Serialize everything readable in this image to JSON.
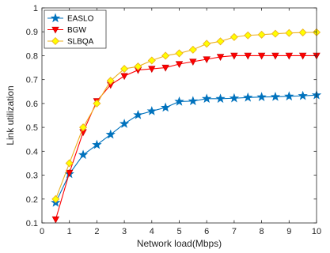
{
  "chart_data": {
    "type": "line",
    "xlabel": "Network load(Mbps)",
    "ylabel": "Link utilization",
    "xlim": [
      0,
      10
    ],
    "ylim": [
      0.1,
      1
    ],
    "x_ticks": [
      "0",
      "1",
      "2",
      "3",
      "4",
      "5",
      "6",
      "7",
      "8",
      "9",
      "10"
    ],
    "y_ticks": [
      "0.1",
      "0.2",
      "0.3",
      "0.4",
      "0.5",
      "0.6",
      "0.7",
      "0.8",
      "0.9",
      "1"
    ],
    "x": [
      0.5,
      1,
      1.5,
      2,
      2.5,
      3,
      3.5,
      4,
      4.5,
      5,
      5.5,
      6,
      6.5,
      7,
      7.5,
      8,
      8.5,
      9,
      9.5,
      10
    ],
    "series": [
      {
        "name": "EASLO",
        "color": "#0072BD",
        "marker": "star",
        "values": [
          0.185,
          0.305,
          0.385,
          0.427,
          0.47,
          0.515,
          0.552,
          0.568,
          0.583,
          0.608,
          0.61,
          0.62,
          0.62,
          0.622,
          0.625,
          0.627,
          0.628,
          0.63,
          0.632,
          0.635
        ]
      },
      {
        "name": "BGW",
        "color": "#D95319",
        "marker": "triangle-down",
        "values": [
          0.115,
          0.31,
          0.48,
          0.61,
          0.678,
          0.715,
          0.74,
          0.745,
          0.75,
          0.765,
          0.775,
          0.785,
          0.795,
          0.8,
          0.8,
          0.8,
          0.8,
          0.8,
          0.8,
          0.8
        ]
      },
      {
        "name": "SLBQA",
        "color": "#EDB120",
        "marker": "diamond",
        "values": [
          0.2,
          0.35,
          0.5,
          0.6,
          0.695,
          0.745,
          0.755,
          0.78,
          0.8,
          0.81,
          0.825,
          0.85,
          0.86,
          0.878,
          0.885,
          0.888,
          0.892,
          0.895,
          0.897,
          0.898
        ]
      }
    ],
    "legend_position": "top-left",
    "grid": false
  }
}
